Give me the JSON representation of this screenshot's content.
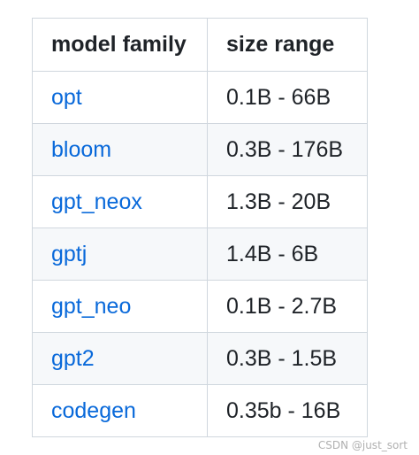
{
  "table": {
    "headers": [
      "model family",
      "size range"
    ],
    "rows": [
      {
        "model": "opt",
        "size": "0.1B - 66B"
      },
      {
        "model": "bloom",
        "size": "0.3B - 176B"
      },
      {
        "model": "gpt_neox",
        "size": "1.3B - 20B"
      },
      {
        "model": "gptj",
        "size": "1.4B - 6B"
      },
      {
        "model": "gpt_neo",
        "size": "0.1B - 2.7B"
      },
      {
        "model": "gpt2",
        "size": "0.3B - 1.5B"
      },
      {
        "model": "codegen",
        "size": "0.35b - 16B"
      }
    ]
  },
  "watermark": "CSDN @just_sort",
  "colors": {
    "link": "#0969da",
    "text": "#1f2328",
    "border": "#d0d7de",
    "stripe": "#f6f8fa"
  }
}
